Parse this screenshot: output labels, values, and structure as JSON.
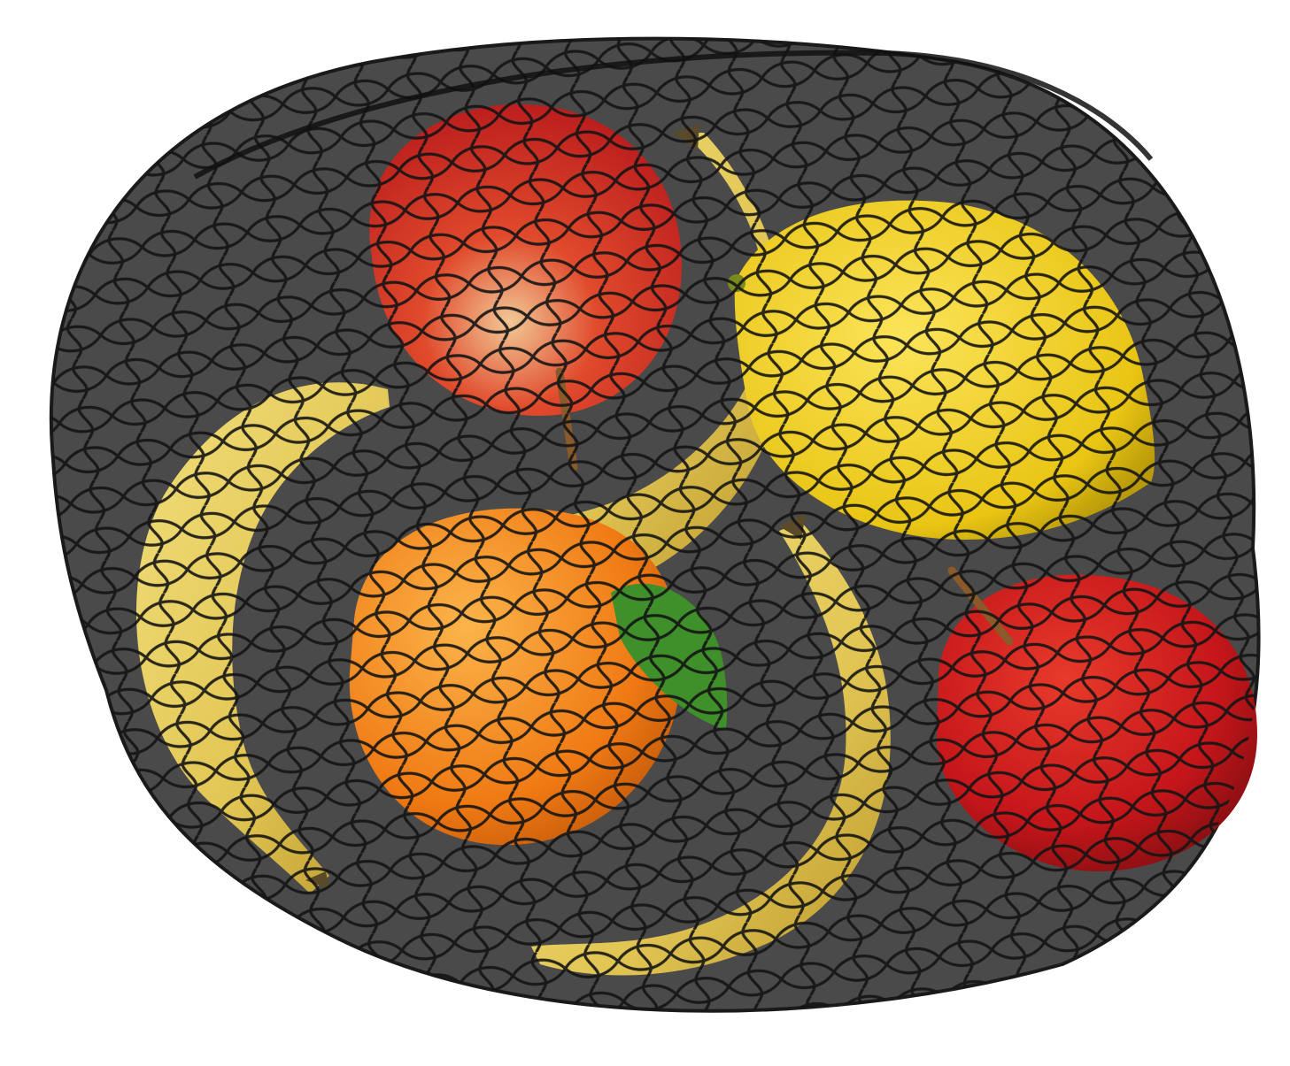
{
  "scene": {
    "subject": "mesh-bag-with-fruit",
    "fruit_count": 7,
    "colors": {
      "background": "#ffffff",
      "bag_fill": "#4a4a4a",
      "net_line": "#111111",
      "apple_red": "#d0231c",
      "apple_highlight": "#f0b27a",
      "banana_yellow": "#e8d05c",
      "banana_shadow": "#b89a2e",
      "banana_tip": "#5a4a2a",
      "lemon_yellow": "#f2d21a",
      "orange": "#f2861c",
      "leaf_green": "#3f8f2a",
      "stem_brown": "#8a5a2a"
    }
  }
}
